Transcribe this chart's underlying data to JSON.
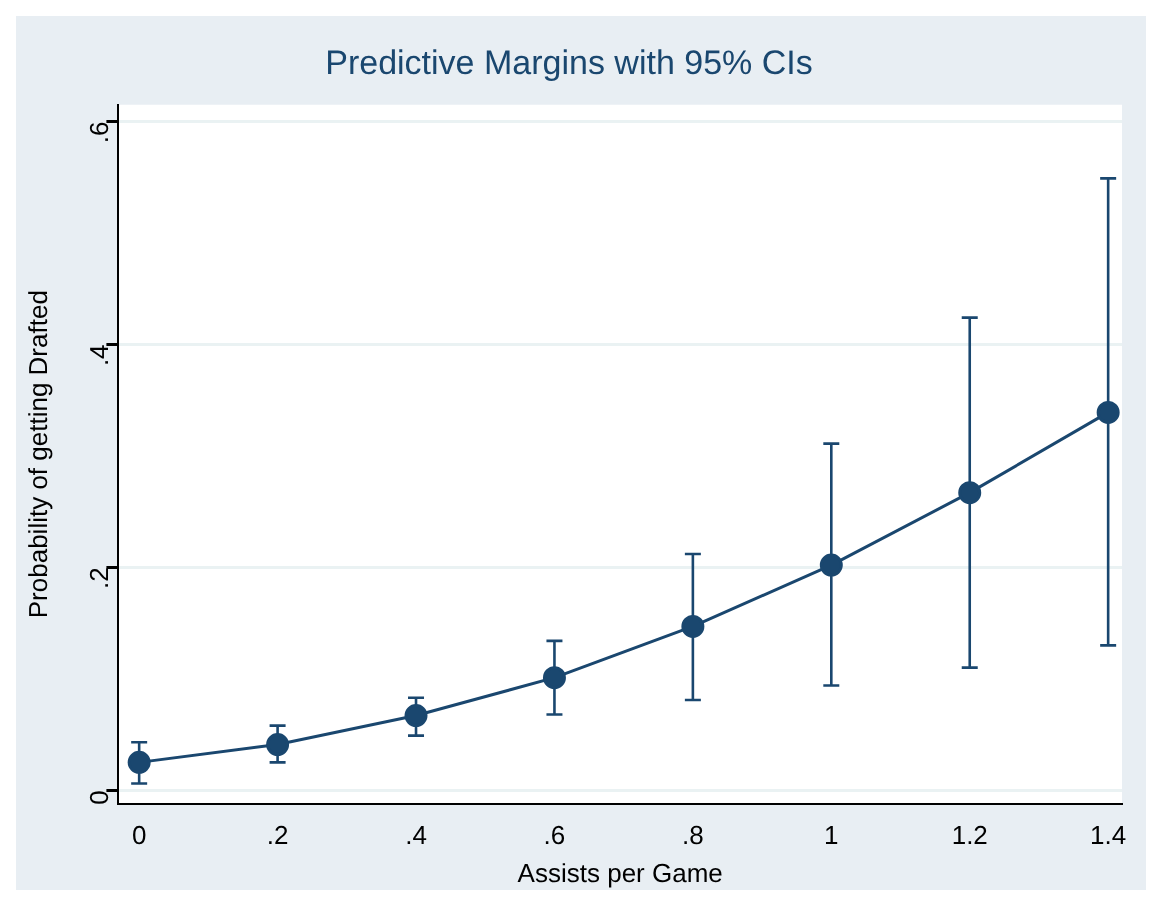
{
  "chart_data": {
    "type": "line",
    "title": "Predictive Margins with 95% CIs",
    "xlabel": "Assists per Game",
    "ylabel": "Probability of getting Drafted",
    "x": [
      0,
      0.2,
      0.4,
      0.6,
      0.8,
      1,
      1.2,
      1.4
    ],
    "series": [
      {
        "color": "#1a476f",
        "values": [
          0.025,
          0.041,
          0.067,
          0.101,
          0.147,
          0.202,
          0.267,
          0.339
        ],
        "errors": [
          [
            0.006,
            0.043
          ],
          [
            0.025,
            0.058
          ],
          [
            0.049,
            0.083
          ],
          [
            0.068,
            0.134
          ],
          [
            0.081,
            0.212
          ],
          [
            0.094,
            0.311
          ],
          [
            0.11,
            0.424
          ],
          [
            0.13,
            0.549
          ]
        ]
      }
    ],
    "xlim": [
      -0.03,
      1.42
    ],
    "ylim": [
      -0.012,
      0.615
    ],
    "xticks": [
      0,
      {
        "value": 0.2,
        "label": ".2"
      },
      {
        "value": 0.4,
        "label": ".4"
      },
      {
        "value": 0.6,
        "label": ".6"
      },
      {
        "value": 0.8,
        "label": ".8"
      },
      1,
      1.2,
      1.4
    ],
    "yticks": [
      0,
      {
        "value": 0.2,
        "label": ".2"
      },
      {
        "value": 0.4,
        "label": ".4"
      },
      {
        "value": 0.6,
        "label": ".6"
      }
    ],
    "grid": "y",
    "legend": false,
    "marker": "circle",
    "line_style": "solid"
  }
}
